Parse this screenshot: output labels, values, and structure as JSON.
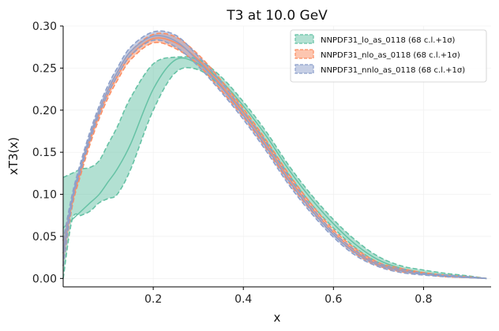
{
  "chart_data": {
    "type": "line",
    "title": "T3 at 10.0 GeV",
    "xlabel": "x",
    "ylabel": "xT3(x)",
    "xlim": [
      0.0,
      0.95
    ],
    "ylim": [
      -0.01,
      0.3
    ],
    "xticks": [
      0.2,
      0.4,
      0.6,
      0.8
    ],
    "yticks": [
      0.0,
      0.05,
      0.1,
      0.15,
      0.2,
      0.25,
      0.3
    ],
    "grid": true,
    "legend_position": "top-right",
    "series": [
      {
        "name": "NNPDF31_lo_as_0118 (68 c.l.+1σ)",
        "color": "#66c2a5",
        "x": [
          0.0,
          0.02,
          0.04,
          0.06,
          0.08,
          0.1,
          0.12,
          0.15,
          0.2,
          0.25,
          0.3,
          0.35,
          0.4,
          0.45,
          0.5,
          0.55,
          0.6,
          0.65,
          0.7,
          0.75,
          0.8,
          0.85,
          0.9,
          0.94
        ],
        "center": [
          0.06,
          0.07,
          0.08,
          0.09,
          0.1,
          0.115,
          0.13,
          0.16,
          0.225,
          0.26,
          0.255,
          0.235,
          0.205,
          0.17,
          0.13,
          0.095,
          0.065,
          0.04,
          0.022,
          0.012,
          0.007,
          0.004,
          0.002,
          0.0
        ],
        "upper": [
          0.12,
          0.125,
          0.13,
          0.132,
          0.14,
          0.16,
          0.18,
          0.215,
          0.255,
          0.263,
          0.26,
          0.24,
          0.21,
          0.175,
          0.135,
          0.1,
          0.07,
          0.045,
          0.026,
          0.015,
          0.01,
          0.006,
          0.003,
          0.0
        ],
        "lower": [
          0.0,
          0.07,
          0.075,
          0.08,
          0.09,
          0.095,
          0.1,
          0.13,
          0.2,
          0.245,
          0.248,
          0.228,
          0.198,
          0.163,
          0.124,
          0.089,
          0.06,
          0.036,
          0.019,
          0.01,
          0.005,
          0.003,
          0.001,
          0.0
        ]
      },
      {
        "name": "NNPDF31_nlo_as_0118 (68 c.l.+1σ)",
        "color": "#fc8d62",
        "x": [
          0.0,
          0.02,
          0.04,
          0.06,
          0.08,
          0.1,
          0.12,
          0.15,
          0.2,
          0.25,
          0.3,
          0.35,
          0.4,
          0.45,
          0.5,
          0.55,
          0.6,
          0.65,
          0.7,
          0.75,
          0.8,
          0.85,
          0.9,
          0.94
        ],
        "center": [
          0.03,
          0.09,
          0.13,
          0.165,
          0.195,
          0.22,
          0.24,
          0.265,
          0.285,
          0.28,
          0.26,
          0.23,
          0.197,
          0.16,
          0.12,
          0.085,
          0.055,
          0.032,
          0.017,
          0.01,
          0.006,
          0.003,
          0.001,
          0.0
        ],
        "upper": [
          0.045,
          0.095,
          0.135,
          0.17,
          0.2,
          0.225,
          0.245,
          0.27,
          0.29,
          0.287,
          0.266,
          0.236,
          0.202,
          0.165,
          0.125,
          0.089,
          0.058,
          0.035,
          0.019,
          0.012,
          0.007,
          0.004,
          0.002,
          0.0
        ],
        "lower": [
          0.015,
          0.085,
          0.125,
          0.16,
          0.19,
          0.215,
          0.235,
          0.26,
          0.28,
          0.273,
          0.254,
          0.224,
          0.192,
          0.155,
          0.115,
          0.081,
          0.052,
          0.029,
          0.015,
          0.008,
          0.005,
          0.002,
          0.001,
          0.0
        ]
      },
      {
        "name": "NNPDF31_nnlo_as_0118 (68 c.l.+1σ)",
        "color": "#8da0cb",
        "x": [
          0.0,
          0.02,
          0.04,
          0.06,
          0.08,
          0.1,
          0.12,
          0.15,
          0.2,
          0.25,
          0.3,
          0.35,
          0.4,
          0.45,
          0.5,
          0.55,
          0.6,
          0.65,
          0.7,
          0.75,
          0.8,
          0.85,
          0.9,
          0.94
        ],
        "center": [
          0.03,
          0.095,
          0.135,
          0.17,
          0.2,
          0.225,
          0.245,
          0.27,
          0.288,
          0.282,
          0.258,
          0.228,
          0.194,
          0.157,
          0.117,
          0.082,
          0.052,
          0.03,
          0.016,
          0.009,
          0.005,
          0.003,
          0.001,
          0.0
        ],
        "upper": [
          0.045,
          0.1,
          0.14,
          0.175,
          0.205,
          0.23,
          0.25,
          0.275,
          0.293,
          0.289,
          0.264,
          0.234,
          0.199,
          0.162,
          0.122,
          0.086,
          0.055,
          0.033,
          0.018,
          0.011,
          0.006,
          0.004,
          0.002,
          0.0
        ],
        "lower": [
          0.015,
          0.09,
          0.13,
          0.165,
          0.195,
          0.22,
          0.24,
          0.265,
          0.283,
          0.275,
          0.252,
          0.222,
          0.189,
          0.152,
          0.112,
          0.078,
          0.049,
          0.027,
          0.014,
          0.007,
          0.004,
          0.002,
          0.001,
          0.0
        ]
      }
    ]
  }
}
